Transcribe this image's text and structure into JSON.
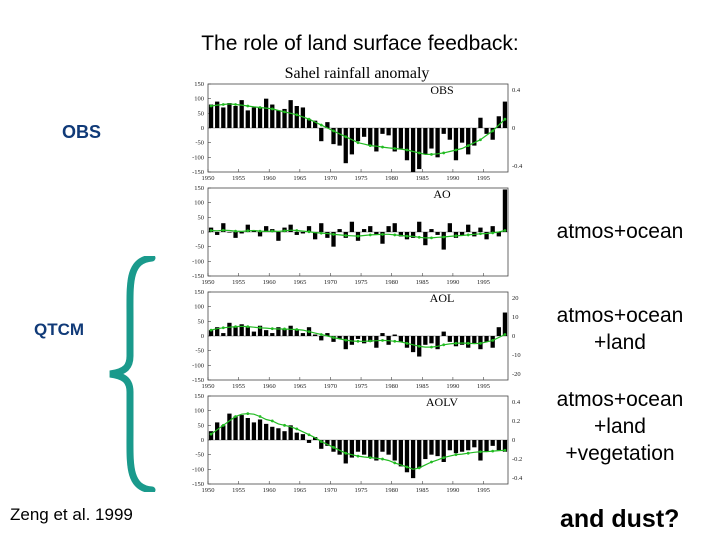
{
  "slide": {
    "title": "The role of land surface feedback:",
    "obs_label": "OBS",
    "qtcm_label": "QTCM",
    "citation": "Zeng et al. 1999",
    "closing": "and dust?",
    "right_labels": [
      [
        "atmos+ocean"
      ],
      [
        "atmos+ocean",
        "+land"
      ],
      [
        "atmos+ocean",
        "+land",
        "+vegetation"
      ]
    ],
    "brace_color": "#1a9a8c"
  },
  "chart_data": {
    "type": "bar",
    "title": "Sahel rainfall anomaly",
    "x": [
      1950,
      1951,
      1952,
      1953,
      1954,
      1955,
      1956,
      1957,
      1958,
      1959,
      1960,
      1961,
      1962,
      1963,
      1964,
      1965,
      1966,
      1967,
      1968,
      1969,
      1970,
      1971,
      1972,
      1973,
      1974,
      1975,
      1976,
      1977,
      1978,
      1979,
      1980,
      1981,
      1982,
      1983,
      1984,
      1985,
      1986,
      1987,
      1988,
      1989,
      1990,
      1991,
      1992,
      1993,
      1994,
      1995,
      1996,
      1997,
      1998
    ],
    "xticks": [
      "1950",
      "1955",
      "1960",
      "1965",
      "1970",
      "1975",
      "1980",
      "1985",
      "1990",
      "1995"
    ],
    "yticks": [
      "150",
      "100",
      "50",
      "0",
      "-50",
      "-100",
      "-150"
    ],
    "ylim": [
      -150,
      150
    ],
    "bar_color": "#000000",
    "line_color": "#22bb22",
    "panels": [
      {
        "name": "OBS",
        "values": [
          80,
          90,
          70,
          85,
          75,
          95,
          60,
          70,
          70,
          100,
          80,
          60,
          65,
          95,
          75,
          70,
          30,
          25,
          -45,
          20,
          -55,
          -60,
          -120,
          -90,
          -45,
          -30,
          -60,
          -80,
          -20,
          -25,
          -80,
          -70,
          -110,
          -150,
          -140,
          -90,
          -70,
          -100,
          -20,
          -40,
          -110,
          -50,
          -90,
          -60,
          35,
          -20,
          -40,
          40,
          90
        ],
        "smooth": [
          75,
          78,
          80,
          82,
          80,
          78,
          75,
          72,
          70,
          68,
          65,
          60,
          55,
          50,
          45,
          38,
          30,
          20,
          10,
          0,
          -10,
          -20,
          -30,
          -40,
          -50,
          -55,
          -60,
          -62,
          -65,
          -68,
          -70,
          -72,
          -75,
          -80,
          -85,
          -90,
          -90,
          -88,
          -85,
          -80,
          -75,
          -70,
          -60,
          -50,
          -40,
          -25,
          -10,
          10,
          30
        ],
        "right_ticks": [
          "0.4",
          "0",
          "-0.4"
        ]
      },
      {
        "name": "AO",
        "values": [
          15,
          -10,
          30,
          0,
          -20,
          -5,
          25,
          5,
          -15,
          20,
          10,
          -30,
          15,
          25,
          -10,
          -5,
          20,
          -25,
          30,
          -20,
          -50,
          10,
          -20,
          35,
          -30,
          10,
          20,
          -10,
          -40,
          20,
          30,
          -15,
          -25,
          -20,
          35,
          -45,
          10,
          -10,
          -60,
          30,
          -20,
          -10,
          25,
          -15,
          15,
          -25,
          20,
          -15,
          145
        ],
        "smooth": [
          5,
          4,
          6,
          5,
          3,
          2,
          4,
          5,
          3,
          2,
          3,
          2,
          4,
          6,
          5,
          3,
          1,
          -2,
          -4,
          -5,
          -8,
          -10,
          -12,
          -13,
          -14,
          -12,
          -10,
          -9,
          -8,
          -8,
          -10,
          -12,
          -14,
          -15,
          -18,
          -20,
          -20,
          -18,
          -17,
          -15,
          -13,
          -12,
          -10,
          -8,
          -6,
          -5,
          -3,
          0,
          5
        ],
        "right_ticks": []
      },
      {
        "name": "AOL",
        "values": [
          20,
          30,
          10,
          45,
          30,
          40,
          30,
          15,
          35,
          20,
          10,
          30,
          25,
          35,
          20,
          10,
          30,
          5,
          -15,
          10,
          -20,
          -10,
          -45,
          -30,
          -10,
          -25,
          -20,
          -40,
          10,
          -30,
          5,
          -20,
          -40,
          -55,
          -70,
          -30,
          -25,
          -45,
          15,
          -20,
          -35,
          -30,
          -40,
          -25,
          -45,
          -20,
          -40,
          30,
          80
        ],
        "smooth": [
          20,
          25,
          28,
          30,
          32,
          33,
          32,
          30,
          28,
          27,
          25,
          24,
          24,
          23,
          22,
          20,
          15,
          10,
          5,
          0,
          -5,
          -10,
          -14,
          -17,
          -18,
          -18,
          -17,
          -16,
          -15,
          -16,
          -18,
          -20,
          -25,
          -30,
          -35,
          -38,
          -38,
          -35,
          -30,
          -27,
          -25,
          -24,
          -25,
          -26,
          -25,
          -20,
          -15,
          -5,
          5
        ],
        "right_ticks": [
          "20",
          "10",
          "0",
          "-10",
          "-20"
        ]
      },
      {
        "name": "AOLV",
        "values": [
          30,
          60,
          50,
          90,
          80,
          85,
          75,
          60,
          70,
          55,
          45,
          40,
          30,
          50,
          25,
          20,
          -10,
          10,
          -30,
          -20,
          -40,
          -50,
          -80,
          -60,
          -40,
          -50,
          -60,
          -70,
          -40,
          -50,
          -70,
          -90,
          -110,
          -130,
          -95,
          -65,
          -50,
          -55,
          -75,
          -35,
          -45,
          -40,
          -35,
          -25,
          -70,
          -40,
          -20,
          -35,
          -40
        ],
        "smooth": [
          20,
          35,
          50,
          65,
          80,
          88,
          90,
          88,
          80,
          70,
          65,
          55,
          50,
          45,
          38,
          28,
          18,
          8,
          -5,
          -15,
          -25,
          -35,
          -45,
          -50,
          -55,
          -58,
          -60,
          -62,
          -65,
          -70,
          -78,
          -85,
          -92,
          -100,
          -95,
          -85,
          -75,
          -68,
          -60,
          -55,
          -50,
          -48,
          -45,
          -42,
          -40,
          -40,
          -38,
          -36,
          -35
        ],
        "right_ticks": [
          "0.4",
          "0.2",
          "0",
          "-0.2",
          "-0.4"
        ]
      }
    ]
  }
}
